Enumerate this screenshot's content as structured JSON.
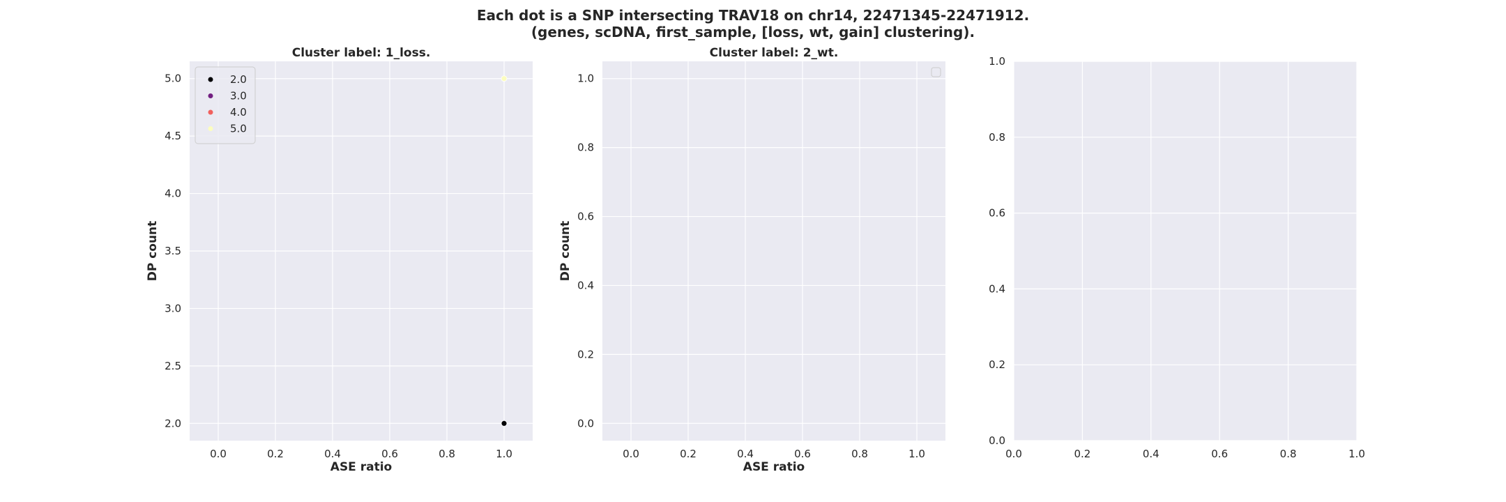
{
  "figure": {
    "title_line1": "Each dot is a SNP intersecting TRAV18 on chr14, 22471345-22471912.",
    "title_line2": "(genes, scDNA, first_sample, [loss, wt, gain] clustering)."
  },
  "style": {
    "axes_bg": "#eaeaf2",
    "grid_color": "#ffffff",
    "text_color": "#262626"
  },
  "chart_data": [
    {
      "type": "scatter",
      "title": "Cluster label: 1_loss.",
      "xlabel": "ASE ratio",
      "ylabel": "DP count",
      "xlim": [
        -0.1,
        1.1
      ],
      "ylim": [
        1.85,
        5.15
      ],
      "xticks": [
        0.0,
        0.2,
        0.4,
        0.6,
        0.8,
        1.0
      ],
      "xtick_labels": [
        "0.0",
        "0.2",
        "0.4",
        "0.6",
        "0.8",
        "1.0"
      ],
      "yticks": [
        2.0,
        2.5,
        3.0,
        3.5,
        4.0,
        4.5,
        5.0
      ],
      "ytick_labels": [
        "2.0",
        "2.5",
        "3.0",
        "3.5",
        "4.0",
        "4.5",
        "5.0"
      ],
      "grid": true,
      "legend": {
        "position": "upper-left",
        "entries": [
          {
            "label": "2.0",
            "color": "#000004"
          },
          {
            "label": "3.0",
            "color": "#721f81"
          },
          {
            "label": "4.0",
            "color": "#f1605d"
          },
          {
            "label": "5.0",
            "color": "#fcfdbf"
          }
        ]
      },
      "points": [
        {
          "x": 1.0,
          "y": 2.0,
          "color": "#000004"
        },
        {
          "x": 1.0,
          "y": 5.0,
          "color": "#fcfdbf"
        }
      ]
    },
    {
      "type": "scatter",
      "title": "Cluster label: 2_wt.",
      "xlabel": "ASE ratio",
      "ylabel": "DP count",
      "xlim": [
        -0.1,
        1.1
      ],
      "ylim": [
        -0.05,
        1.05
      ],
      "xticks": [
        0.0,
        0.2,
        0.4,
        0.6,
        0.8,
        1.0
      ],
      "xtick_labels": [
        "0.0",
        "0.2",
        "0.4",
        "0.6",
        "0.8",
        "1.0"
      ],
      "yticks": [
        0.0,
        0.2,
        0.4,
        0.6,
        0.8,
        1.0
      ],
      "ytick_labels": [
        "0.0",
        "0.2",
        "0.4",
        "0.6",
        "0.8",
        "1.0"
      ],
      "grid": true,
      "legend": {
        "position": "upper-right",
        "entries": []
      },
      "points": []
    },
    {
      "type": "scatter",
      "title": "",
      "xlabel": "",
      "ylabel": "",
      "xlim": [
        0.0,
        1.0
      ],
      "ylim": [
        0.0,
        1.0
      ],
      "xticks": [
        0.0,
        0.2,
        0.4,
        0.6,
        0.8,
        1.0
      ],
      "xtick_labels": [
        "0.0",
        "0.2",
        "0.4",
        "0.6",
        "0.8",
        "1.0"
      ],
      "yticks": [
        0.0,
        0.2,
        0.4,
        0.6,
        0.8,
        1.0
      ],
      "ytick_labels": [
        "0.0",
        "0.2",
        "0.4",
        "0.6",
        "0.8",
        "1.0"
      ],
      "grid": true,
      "points": []
    }
  ]
}
